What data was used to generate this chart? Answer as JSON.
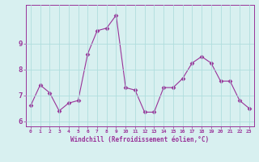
{
  "x": [
    0,
    1,
    2,
    3,
    4,
    5,
    6,
    7,
    8,
    9,
    10,
    11,
    12,
    13,
    14,
    15,
    16,
    17,
    18,
    19,
    20,
    21,
    22,
    23
  ],
  "y": [
    6.6,
    7.4,
    7.1,
    6.4,
    6.7,
    6.8,
    8.6,
    9.5,
    9.6,
    10.1,
    7.3,
    7.2,
    6.35,
    6.35,
    7.3,
    7.3,
    7.65,
    8.25,
    8.5,
    8.25,
    7.55,
    7.55,
    6.8,
    6.5
  ],
  "line_color": "#993399",
  "marker": "D",
  "marker_size": 2.5,
  "bg_color": "#d8f0f0",
  "grid_color": "#b0dede",
  "xlabel": "Windchill (Refroidissement éolien,°C)",
  "xlabel_color": "#993399",
  "tick_color": "#993399",
  "ylim": [
    5.8,
    10.5
  ],
  "xlim": [
    -0.5,
    23.5
  ],
  "yticks": [
    6,
    7,
    8,
    9
  ],
  "xticks": [
    0,
    1,
    2,
    3,
    4,
    5,
    6,
    7,
    8,
    9,
    10,
    11,
    12,
    13,
    14,
    15,
    16,
    17,
    18,
    19,
    20,
    21,
    22,
    23
  ]
}
